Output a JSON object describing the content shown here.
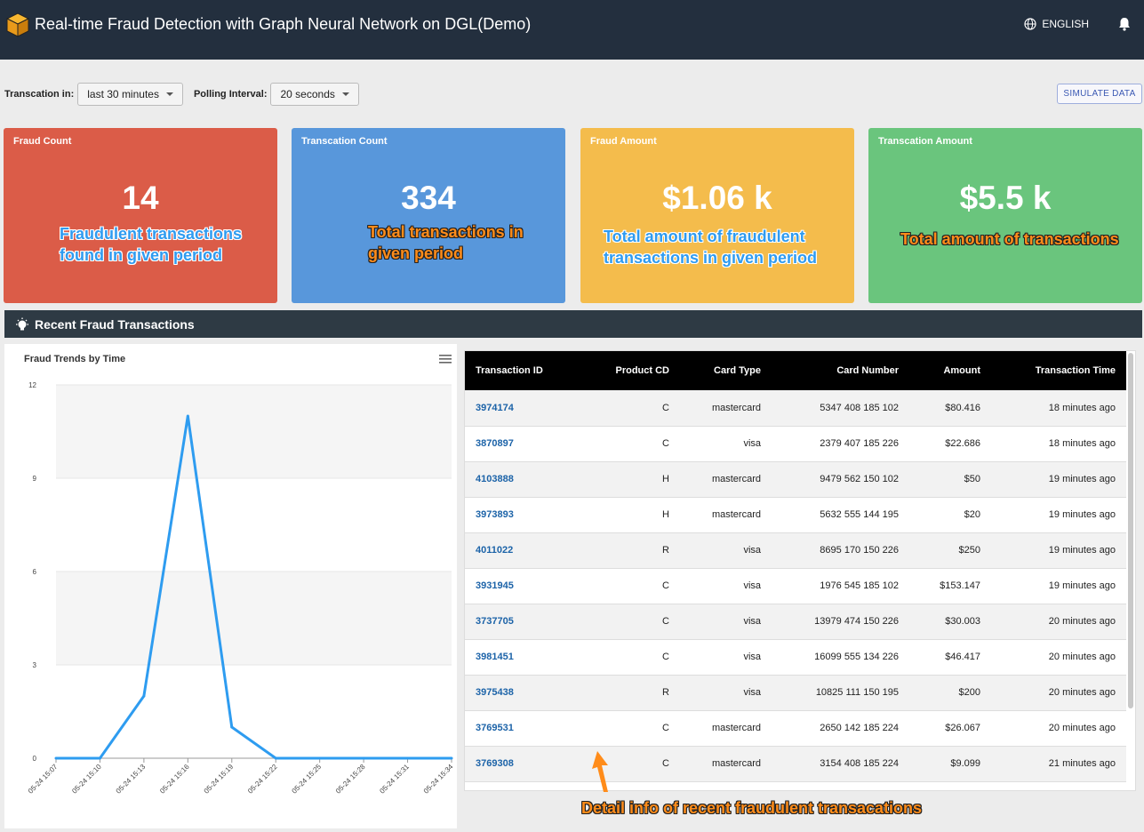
{
  "header": {
    "title": "Real-time Fraud Detection with Graph Neural Network on DGL(Demo)",
    "language": "ENGLISH"
  },
  "filters": {
    "transaction_in_label": "Transcation in:",
    "transaction_in_value": "last 30 minutes",
    "polling_label": "Polling Interval:",
    "polling_value": "20 seconds",
    "simulate_label": "SIMULATE DATA"
  },
  "cards": [
    {
      "label": "Fraud Count",
      "value": "14",
      "note_line1": "Fraudulent transactions",
      "note_line2": "found in given period",
      "color": "#db5c48"
    },
    {
      "label": "Transcation Count",
      "value": "334",
      "note_line1": "Total transactions in",
      "note_line2": "given period",
      "color": "#5897db"
    },
    {
      "label": "Fraud Amount",
      "value": "$1.06 k",
      "note_line1": "Total amount of fraudulent",
      "note_line2": "transactions in given period",
      "color": "#f4bc4c"
    },
    {
      "label": "Transcation Amount",
      "value": "$5.5 k",
      "note_line1": "Total amount of transactions",
      "note_line2": "",
      "color": "#6ac57d"
    }
  ],
  "section": {
    "title": "Recent Fraud Transactions"
  },
  "chart_data": {
    "type": "line",
    "title": "Fraud Trends by Time",
    "x": [
      "05-24 15:07",
      "05-24 15:10",
      "05-24 15:13",
      "05-24 15:16",
      "05-24 15:19",
      "05-24 15:22",
      "05-24 15:25",
      "05-24 15:28",
      "05-24 15:31",
      "05-24 15:34"
    ],
    "values": [
      0,
      0,
      2,
      11,
      1,
      0,
      0,
      0,
      0,
      0
    ],
    "yticks": [
      0,
      3,
      6,
      9,
      12
    ],
    "ylim": [
      0,
      12
    ],
    "grid": true,
    "color": "#2e9cf0"
  },
  "table": {
    "columns": [
      "Transaction ID",
      "Product CD",
      "Card Type",
      "Card Number",
      "Amount",
      "Transaction Time"
    ],
    "rows": [
      [
        "3974174",
        "C",
        "mastercard",
        "5347 408 185 102",
        "$80.416",
        "18 minutes ago"
      ],
      [
        "3870897",
        "C",
        "visa",
        "2379 407 185 226",
        "$22.686",
        "18 minutes ago"
      ],
      [
        "4103888",
        "H",
        "mastercard",
        "9479 562 150 102",
        "$50",
        "19 minutes ago"
      ],
      [
        "3973893",
        "H",
        "mastercard",
        "5632 555 144 195",
        "$20",
        "19 minutes ago"
      ],
      [
        "4011022",
        "R",
        "visa",
        "8695 170 150 226",
        "$250",
        "19 minutes ago"
      ],
      [
        "3931945",
        "C",
        "visa",
        "1976 545 185 102",
        "$153.147",
        "19 minutes ago"
      ],
      [
        "3737705",
        "C",
        "visa",
        "13979 474 150 226",
        "$30.003",
        "20 minutes ago"
      ],
      [
        "3981451",
        "C",
        "visa",
        "16099 555 134 226",
        "$46.417",
        "20 minutes ago"
      ],
      [
        "3975438",
        "R",
        "visa",
        "10825 111 150 195",
        "$200",
        "20 minutes ago"
      ],
      [
        "3769531",
        "C",
        "mastercard",
        "2650 142 185 224",
        "$26.067",
        "20 minutes ago"
      ],
      [
        "3769308",
        "C",
        "mastercard",
        "3154 408 185 224",
        "$9.099",
        "21 minutes ago"
      ]
    ]
  },
  "annotation": {
    "detail": "Detail info of recent fraudulent transacations"
  }
}
